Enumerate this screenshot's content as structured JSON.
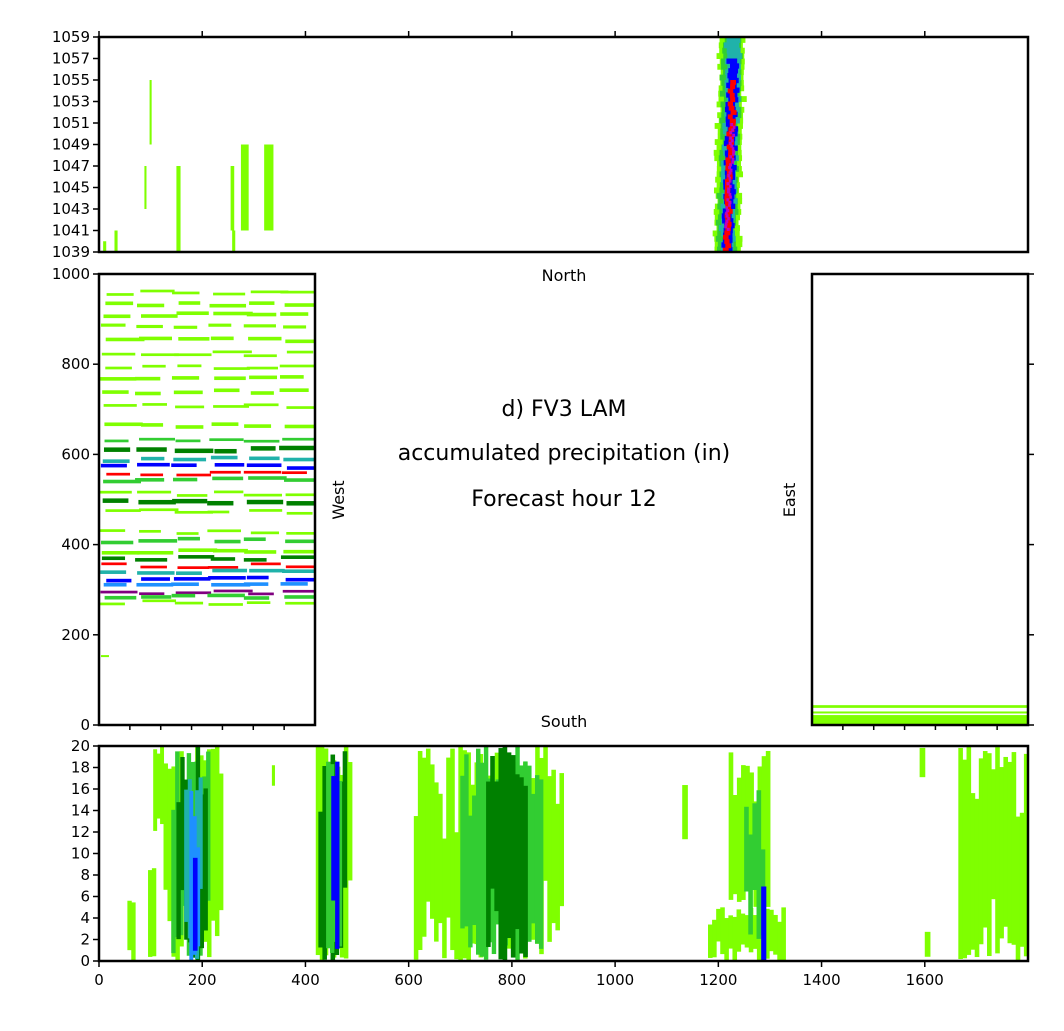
{
  "figure": {
    "title_lines": [
      "d) FV3 LAM",
      "accumulated precipitation (in)",
      "Forecast hour 12"
    ],
    "side_labels": {
      "north": "North",
      "south": "South",
      "west": "West",
      "east": "East"
    }
  },
  "colors": {
    "light_green": "#7fff00",
    "med_green": "#32cd32",
    "dark_green": "#008000",
    "teal": "#20b2aa",
    "cyan": "#00e5ff",
    "dodger_blue": "#1e90ff",
    "blue": "#0000ff",
    "navy": "#000080",
    "purple": "#800080",
    "magenta": "#c000c0",
    "red": "#ff0000",
    "dark_red": "#8b0000"
  },
  "chart_data": [
    {
      "id": "north",
      "type": "heatmap",
      "xlim": [
        0,
        1800
      ],
      "ylim": [
        1039,
        1059
      ],
      "yticks": [
        "1039",
        "1041",
        "1043",
        "1045",
        "1047",
        "1049",
        "1051",
        "1053",
        "1055",
        "1057",
        "1059"
      ],
      "xticks": [
        0,
        200,
        400,
        600,
        800,
        1000,
        1200,
        1400,
        1600
      ],
      "tick_labels_x": false,
      "label": "North",
      "features": [
        {
          "kind": "band",
          "x0": 1200,
          "x1": 1255,
          "y0": 1039,
          "y1": 1059,
          "color": "light_green"
        },
        {
          "kind": "band",
          "x0": 1208,
          "x1": 1248,
          "y0": 1039,
          "y1": 1059,
          "color": "med_green"
        },
        {
          "kind": "band",
          "x0": 1214,
          "x1": 1244,
          "y0": 1039,
          "y1": 1059,
          "color": "teal"
        },
        {
          "kind": "band",
          "x0": 1218,
          "x1": 1240,
          "y0": 1039,
          "y1": 1057,
          "color": "blue"
        },
        {
          "kind": "band",
          "x0": 1222,
          "x1": 1234,
          "y0": 1039,
          "y1": 1055,
          "color": "red"
        },
        {
          "kind": "band",
          "x0": 1226,
          "x1": 1232,
          "y0": 1041,
          "y1": 1051,
          "color": "magenta"
        },
        {
          "kind": "streak",
          "x0": 98,
          "x1": 102,
          "y0": 1049,
          "y1": 1055,
          "color": "light_green"
        },
        {
          "kind": "streak",
          "x0": 88,
          "x1": 92,
          "y0": 1043,
          "y1": 1047,
          "color": "light_green"
        },
        {
          "kind": "streak",
          "x0": 150,
          "x1": 158,
          "y0": 1039,
          "y1": 1047,
          "color": "light_green"
        },
        {
          "kind": "streak",
          "x0": 255,
          "x1": 262,
          "y0": 1041,
          "y1": 1047,
          "color": "light_green"
        },
        {
          "kind": "streak",
          "x0": 275,
          "x1": 290,
          "y0": 1041,
          "y1": 1049,
          "color": "light_green"
        },
        {
          "kind": "streak",
          "x0": 320,
          "x1": 338,
          "y0": 1041,
          "y1": 1049,
          "color": "light_green"
        },
        {
          "kind": "streak",
          "x0": 258,
          "x1": 264,
          "y0": 1039,
          "y1": 1041,
          "color": "light_green"
        },
        {
          "kind": "streak",
          "x0": 8,
          "x1": 14,
          "y0": 1039,
          "y1": 1040,
          "color": "light_green"
        },
        {
          "kind": "streak",
          "x0": 30,
          "x1": 36,
          "y0": 1039,
          "y1": 1041,
          "color": "light_green"
        }
      ]
    },
    {
      "id": "west",
      "type": "heatmap",
      "xlim": [
        0,
        420
      ],
      "ylim": [
        0,
        1000
      ],
      "yticks": [
        0,
        200,
        400,
        600,
        800,
        1000
      ],
      "label": "West",
      "bands": [
        {
          "y": 955,
          "h": 6,
          "color": "light_green"
        },
        {
          "y": 930,
          "h": 8,
          "color": "light_green"
        },
        {
          "y": 905,
          "h": 8,
          "color": "light_green"
        },
        {
          "y": 880,
          "h": 7,
          "color": "light_green"
        },
        {
          "y": 850,
          "h": 8,
          "color": "light_green"
        },
        {
          "y": 820,
          "h": 6,
          "color": "light_green"
        },
        {
          "y": 790,
          "h": 6,
          "color": "light_green"
        },
        {
          "y": 765,
          "h": 8,
          "color": "light_green"
        },
        {
          "y": 735,
          "h": 8,
          "color": "light_green"
        },
        {
          "y": 705,
          "h": 6,
          "color": "light_green"
        },
        {
          "y": 660,
          "h": 8,
          "color": "light_green"
        },
        {
          "y": 630,
          "h": 6,
          "color": "med_green"
        },
        {
          "y": 605,
          "h": 10,
          "color": "dark_green"
        },
        {
          "y": 585,
          "h": 8,
          "color": "teal"
        },
        {
          "y": 570,
          "h": 8,
          "color": "blue"
        },
        {
          "y": 555,
          "h": 6,
          "color": "red"
        },
        {
          "y": 540,
          "h": 8,
          "color": "med_green"
        },
        {
          "y": 510,
          "h": 6,
          "color": "light_green"
        },
        {
          "y": 490,
          "h": 10,
          "color": "dark_green"
        },
        {
          "y": 470,
          "h": 6,
          "color": "light_green"
        },
        {
          "y": 425,
          "h": 6,
          "color": "light_green"
        },
        {
          "y": 405,
          "h": 8,
          "color": "med_green"
        },
        {
          "y": 380,
          "h": 8,
          "color": "light_green"
        },
        {
          "y": 365,
          "h": 8,
          "color": "dark_green"
        },
        {
          "y": 350,
          "h": 6,
          "color": "red"
        },
        {
          "y": 335,
          "h": 8,
          "color": "teal"
        },
        {
          "y": 320,
          "h": 8,
          "color": "blue"
        },
        {
          "y": 305,
          "h": 8,
          "color": "dodger_blue"
        },
        {
          "y": 292,
          "h": 6,
          "color": "purple"
        },
        {
          "y": 280,
          "h": 8,
          "color": "med_green"
        },
        {
          "y": 268,
          "h": 6,
          "color": "light_green"
        }
      ]
    },
    {
      "id": "east",
      "type": "heatmap",
      "xlim": [
        0,
        420
      ],
      "ylim": [
        0,
        1000
      ],
      "label": "East",
      "bands": [
        {
          "y": 0,
          "h": 22,
          "color": "light_green"
        },
        {
          "y": 38,
          "h": 6,
          "color": "light_green"
        },
        {
          "y": 26,
          "h": 4,
          "color": "light_green"
        }
      ]
    },
    {
      "id": "south",
      "type": "heatmap",
      "xlim": [
        0,
        1800
      ],
      "ylim": [
        0,
        20
      ],
      "xticks": [
        0,
        200,
        400,
        600,
        800,
        1000,
        1200,
        1400,
        1600
      ],
      "yticks": [
        0,
        2,
        4,
        6,
        8,
        10,
        12,
        14,
        16,
        18,
        20
      ],
      "label": "South",
      "columns": [
        {
          "x0": 55,
          "x1": 70,
          "y0": 0,
          "y1": 6,
          "color": "light_green"
        },
        {
          "x0": 95,
          "x1": 110,
          "y0": 0,
          "y1": 9,
          "color": "light_green"
        },
        {
          "x0": 105,
          "x1": 125,
          "y0": 12,
          "y1": 20,
          "color": "light_green"
        },
        {
          "x0": 125,
          "x1": 240,
          "y0": 0,
          "y1": 20,
          "color": "light_green"
        },
        {
          "x0": 140,
          "x1": 215,
          "y0": 0,
          "y1": 20,
          "color": "med_green"
        },
        {
          "x0": 150,
          "x1": 210,
          "y0": 0,
          "y1": 20,
          "color": "dark_green"
        },
        {
          "x0": 165,
          "x1": 200,
          "y0": 0,
          "y1": 18,
          "color": "teal"
        },
        {
          "x0": 175,
          "x1": 195,
          "y0": 0,
          "y1": 16,
          "color": "dodger_blue"
        },
        {
          "x0": 182,
          "x1": 190,
          "y0": 0,
          "y1": 14,
          "color": "blue"
        },
        {
          "x0": 335,
          "x1": 340,
          "y0": 16,
          "y1": 19,
          "color": "light_green"
        },
        {
          "x0": 420,
          "x1": 490,
          "y0": 0,
          "y1": 20,
          "color": "light_green"
        },
        {
          "x0": 425,
          "x1": 480,
          "y0": 0,
          "y1": 20,
          "color": "dark_green"
        },
        {
          "x0": 440,
          "x1": 470,
          "y0": 0,
          "y1": 20,
          "color": "med_green"
        },
        {
          "x0": 450,
          "x1": 465,
          "y0": 0,
          "y1": 20,
          "color": "blue"
        },
        {
          "x0": 610,
          "x1": 900,
          "y0": 0,
          "y1": 20,
          "color": "light_green"
        },
        {
          "x0": 700,
          "x1": 860,
          "y0": 0,
          "y1": 20,
          "color": "med_green"
        },
        {
          "x0": 750,
          "x1": 830,
          "y0": 0,
          "y1": 20,
          "color": "dark_green"
        },
        {
          "x0": 1130,
          "x1": 1140,
          "y0": 11,
          "y1": 17,
          "color": "light_green"
        },
        {
          "x0": 1180,
          "x1": 1330,
          "y0": 0,
          "y1": 5,
          "color": "light_green"
        },
        {
          "x0": 1220,
          "x1": 1300,
          "y0": 5,
          "y1": 20,
          "color": "light_green"
        },
        {
          "x0": 1250,
          "x1": 1290,
          "y0": 2,
          "y1": 16,
          "color": "med_green"
        },
        {
          "x0": 1283,
          "x1": 1292,
          "y0": 0,
          "y1": 7,
          "color": "blue"
        },
        {
          "x0": 1590,
          "x1": 1600,
          "y0": 17,
          "y1": 20,
          "color": "light_green"
        },
        {
          "x0": 1600,
          "x1": 1610,
          "y0": 0,
          "y1": 3,
          "color": "light_green"
        },
        {
          "x0": 1665,
          "x1": 1800,
          "y0": 0,
          "y1": 20,
          "color": "light_green"
        }
      ]
    }
  ]
}
